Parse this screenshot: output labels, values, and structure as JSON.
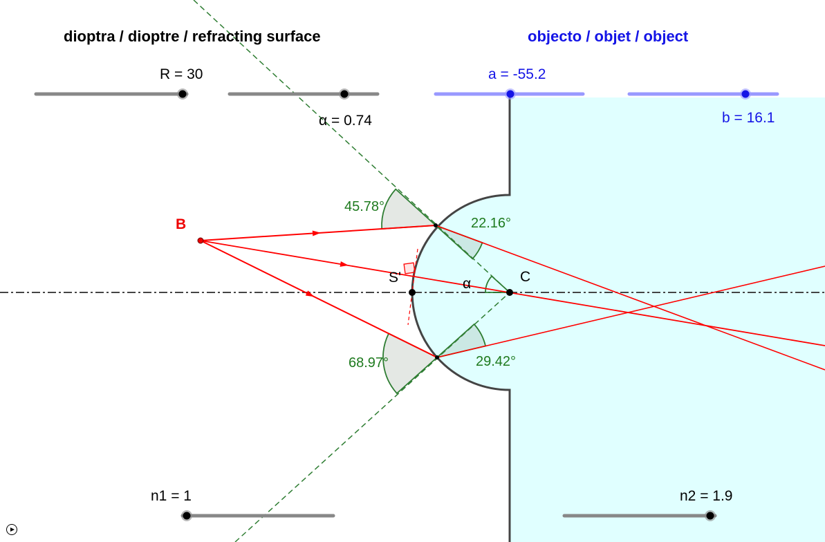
{
  "titles": {
    "surface": "dioptra / dioptre / refracting surface",
    "object": "objecto / objet / object"
  },
  "sliders": {
    "R": {
      "label": "R = 30",
      "value": 30
    },
    "alpha": {
      "label": "α = 0.74",
      "value": 0.74
    },
    "a": {
      "label": "a = -55.2",
      "value": -55.2
    },
    "b": {
      "label": "b = 16.1",
      "value": 16.1
    },
    "n1": {
      "label": "n1 = 1",
      "value": 1
    },
    "n2": {
      "label": "n2 = 1.9",
      "value": 1.9
    }
  },
  "points": {
    "B": "B",
    "S": "S'",
    "C": "C",
    "alpha": "α"
  },
  "angles": {
    "incident_top": "45.78°",
    "refracted_top": "22.16°",
    "incident_bottom": "68.97°",
    "refracted_bottom": "29.42°"
  },
  "colors": {
    "ray": "#ff0000",
    "normal": "#2e7d32",
    "medium2": "#e0ffff",
    "object_slider": "#9999ff",
    "object_text": "#1414e6"
  },
  "controls": {
    "play_icon": "play-icon"
  }
}
